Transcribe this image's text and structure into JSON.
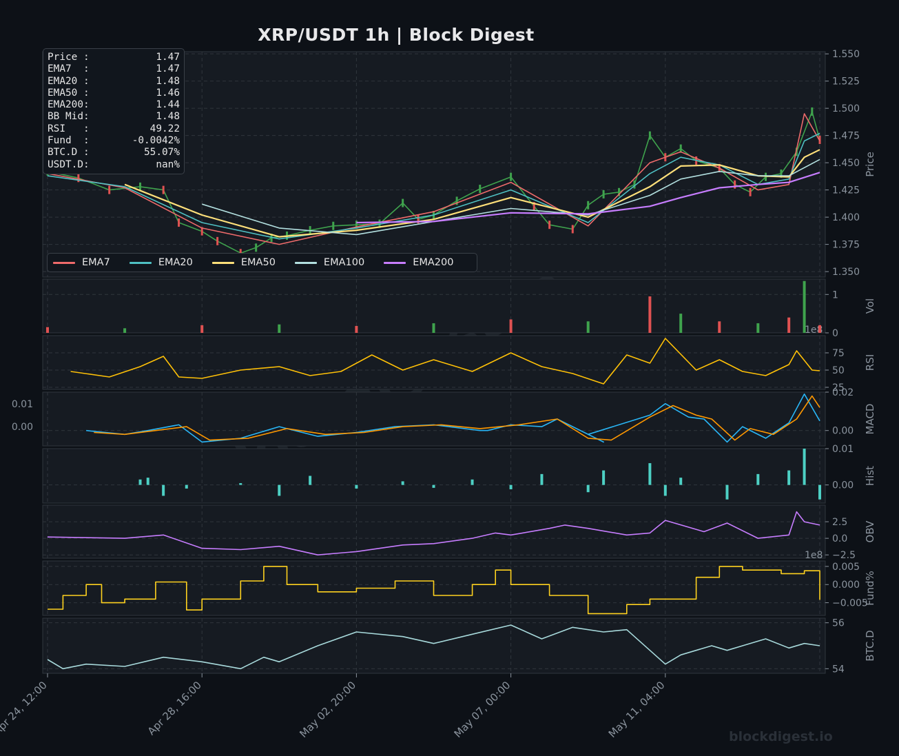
{
  "title": "XRP/USDT  1h  |  Block Digest",
  "watermark": "blockdigest.io",
  "colors": {
    "background": "#0d1117",
    "panel": "#161b22",
    "grid": "#30363d",
    "axis_text": "#8b949e",
    "candle_up": "#3fa34d",
    "candle_down": "#e05252",
    "ema7": "#ef6b6b",
    "ema20": "#4fc1c4",
    "ema50": "#ffe07a",
    "ema100": "#b3e0e0",
    "ema200": "#c77dff",
    "rsi": "#ffc107",
    "macd": "#29b6f6",
    "signal": "#ff9800",
    "hist": "#4dd0c4",
    "obv": "#c77dff",
    "fund": "#ffd21f",
    "btcd": "#a8dadc"
  },
  "info_box": [
    {
      "label": "Price :",
      "value": "1.47"
    },
    {
      "label": "EMA7  :",
      "value": "1.47"
    },
    {
      "label": "EMA20 :",
      "value": "1.48"
    },
    {
      "label": "EMA50 :",
      "value": "1.46"
    },
    {
      "label": "EMA200:",
      "value": "1.44"
    },
    {
      "label": "BB Mid:",
      "value": "1.48"
    },
    {
      "label": "RSI   :",
      "value": "49.22"
    },
    {
      "label": "Fund  :",
      "value": "-0.0042%"
    },
    {
      "label": "BTC.D :",
      "value": "55.07%"
    },
    {
      "label": "USDT.D:",
      "value": "nan%"
    }
  ],
  "legend": [
    {
      "name": "EMA7",
      "color": "#ef6b6b"
    },
    {
      "name": "EMA20",
      "color": "#4fc1c4"
    },
    {
      "name": "EMA50",
      "color": "#ffe07a"
    },
    {
      "name": "EMA100",
      "color": "#b3e0e0"
    },
    {
      "name": "EMA200",
      "color": "#c77dff"
    }
  ],
  "x_ticks": [
    "Apr 24, 12:00",
    "Apr 28, 16:00",
    "May 02, 20:00",
    "May 07, 00:00",
    "May 11, 04:00"
  ],
  "chart_data": {
    "type": "line",
    "x_range": [
      "Apr 24, 12:00",
      "May 15, 08:00"
    ],
    "panels": [
      {
        "name": "price",
        "ylabel": "Price",
        "ylim": [
          1.345,
          1.552
        ],
        "yticks": [
          "1.350",
          "1.375",
          "1.400",
          "1.425",
          "1.450",
          "1.475",
          "1.500",
          "1.525",
          "1.550"
        ],
        "series": [
          {
            "name": "Close",
            "x": [
              0,
              0.04,
              0.08,
              0.12,
              0.15,
              0.17,
              0.2,
              0.22,
              0.25,
              0.27,
              0.29,
              0.31,
              0.34,
              0.37,
              0.4,
              0.43,
              0.46,
              0.48,
              0.5,
              0.53,
              0.56,
              0.6,
              0.63,
              0.65,
              0.68,
              0.7,
              0.72,
              0.74,
              0.76,
              0.78,
              0.8,
              0.82,
              0.84,
              0.87,
              0.89,
              0.91,
              0.93,
              0.95,
              0.97,
              0.99,
              1.0
            ],
            "y": [
              1.442,
              1.436,
              1.425,
              1.428,
              1.425,
              1.395,
              1.387,
              1.378,
              1.367,
              1.372,
              1.381,
              1.383,
              1.388,
              1.392,
              1.393,
              1.394,
              1.413,
              1.398,
              1.402,
              1.415,
              1.426,
              1.437,
              1.41,
              1.393,
              1.389,
              1.411,
              1.421,
              1.423,
              1.43,
              1.475,
              1.455,
              1.463,
              1.452,
              1.445,
              1.43,
              1.423,
              1.437,
              1.44,
              1.46,
              1.497,
              1.471
            ]
          },
          {
            "name": "EMA7",
            "x": [
              0,
              0.1,
              0.2,
              0.3,
              0.4,
              0.5,
              0.6,
              0.7,
              0.78,
              0.82,
              0.87,
              0.92,
              0.96,
              0.98,
              1.0
            ],
            "y": [
              1.44,
              1.427,
              1.39,
              1.375,
              1.391,
              1.405,
              1.432,
              1.392,
              1.45,
              1.46,
              1.445,
              1.425,
              1.43,
              1.495,
              1.47
            ]
          },
          {
            "name": "EMA20",
            "x": [
              0,
              0.1,
              0.2,
              0.3,
              0.4,
              0.5,
              0.6,
              0.7,
              0.78,
              0.82,
              0.87,
              0.92,
              0.96,
              0.98,
              1.0
            ],
            "y": [
              1.438,
              1.428,
              1.395,
              1.38,
              1.39,
              1.402,
              1.425,
              1.395,
              1.44,
              1.455,
              1.448,
              1.43,
              1.435,
              1.47,
              1.477
            ]
          },
          {
            "name": "EMA50",
            "x": [
              0.1,
              0.2,
              0.3,
              0.4,
              0.5,
              0.6,
              0.7,
              0.78,
              0.82,
              0.87,
              0.92,
              0.96,
              0.98,
              1.0
            ],
            "y": [
              1.43,
              1.402,
              1.382,
              1.388,
              1.398,
              1.418,
              1.4,
              1.428,
              1.447,
              1.448,
              1.438,
              1.437,
              1.455,
              1.462
            ]
          },
          {
            "name": "EMA100",
            "x": [
              0.2,
              0.3,
              0.4,
              0.5,
              0.6,
              0.7,
              0.78,
              0.82,
              0.87,
              0.92,
              0.96,
              1.0
            ],
            "y": [
              1.412,
              1.39,
              1.384,
              1.396,
              1.408,
              1.402,
              1.42,
              1.435,
              1.442,
              1.438,
              1.438,
              1.453
            ]
          },
          {
            "name": "EMA200",
            "x": [
              0.4,
              0.5,
              0.6,
              0.7,
              0.78,
              0.82,
              0.87,
              0.92,
              0.96,
              1.0
            ],
            "y": [
              1.395,
              1.396,
              1.404,
              1.403,
              1.41,
              1.418,
              1.427,
              1.43,
              1.432,
              1.441
            ]
          }
        ]
      },
      {
        "name": "volume",
        "ylabel": "Vol",
        "ylim": [
          0,
          1.4
        ],
        "yticks": [
          "0",
          "1"
        ],
        "exponent": "1e8",
        "series": [
          {
            "name": "Volume",
            "x": [
              0,
              0.1,
              0.2,
              0.3,
              0.4,
              0.5,
              0.6,
              0.7,
              0.78,
              0.82,
              0.87,
              0.92,
              0.96,
              0.98,
              1.0
            ],
            "y": [
              0.15,
              0.12,
              0.2,
              0.22,
              0.18,
              0.25,
              0.35,
              0.3,
              0.95,
              0.5,
              0.3,
              0.25,
              0.4,
              1.35,
              0.2
            ]
          }
        ]
      },
      {
        "name": "rsi",
        "ylabel": "RSI",
        "ylim": [
          22,
          100
        ],
        "yticks": [
          "25",
          "50",
          "75"
        ],
        "series": [
          {
            "name": "RSI",
            "x": [
              0.03,
              0.08,
              0.12,
              0.15,
              0.17,
              0.2,
              0.25,
              0.3,
              0.34,
              0.38,
              0.42,
              0.46,
              0.5,
              0.55,
              0.6,
              0.64,
              0.68,
              0.72,
              0.75,
              0.78,
              0.8,
              0.84,
              0.87,
              0.9,
              0.93,
              0.96,
              0.97,
              0.99,
              1.0
            ],
            "y": [
              48,
              40,
              55,
              70,
              40,
              38,
              50,
              55,
              42,
              48,
              72,
              50,
              65,
              48,
              75,
              55,
              45,
              30,
              72,
              60,
              96,
              50,
              65,
              48,
              42,
              58,
              78,
              50,
              49
            ]
          }
        ]
      },
      {
        "name": "macd",
        "ylabel": "MACD",
        "ylim": [
          -0.008,
          0.02
        ],
        "yticks": [
          "0.00",
          "0.02"
        ],
        "left_yticks": [
          "0.00",
          "0.01"
        ],
        "series": [
          {
            "name": "MACD",
            "x": [
              0.05,
              0.1,
              0.13,
              0.17,
              0.2,
              0.25,
              0.3,
              0.35,
              0.4,
              0.45,
              0.5,
              0.56,
              0.57,
              0.6,
              0.64,
              0.66,
              0.72,
              0.7,
              0.78,
              0.8,
              0.83,
              0.85,
              0.88,
              0.9,
              0.93,
              0.96,
              0.98,
              1.0
            ],
            "y": [
              0.0,
              -0.002,
              0.0,
              0.003,
              -0.006,
              -0.004,
              0.002,
              -0.003,
              -0.001,
              0.002,
              0.003,
              0.0,
              0.0,
              0.003,
              0.002,
              0.006,
              -0.006,
              -0.002,
              0.008,
              0.014,
              0.007,
              0.006,
              -0.006,
              0.002,
              -0.004,
              0.004,
              0.019,
              0.005
            ]
          },
          {
            "name": "Signal",
            "x": [
              0.06,
              0.1,
              0.14,
              0.18,
              0.21,
              0.26,
              0.31,
              0.36,
              0.41,
              0.46,
              0.51,
              0.56,
              0.61,
              0.66,
              0.7,
              0.73,
              0.78,
              0.81,
              0.84,
              0.86,
              0.89,
              0.91,
              0.94,
              0.97,
              0.99,
              1.0
            ],
            "y": [
              -0.001,
              -0.002,
              0.0,
              0.002,
              -0.005,
              -0.004,
              0.001,
              -0.002,
              -0.001,
              0.002,
              0.003,
              0.001,
              0.003,
              0.006,
              -0.004,
              -0.005,
              0.007,
              0.013,
              0.008,
              0.006,
              -0.005,
              0.001,
              -0.002,
              0.006,
              0.018,
              0.012
            ]
          }
        ]
      },
      {
        "name": "hist",
        "ylabel": "Hist",
        "ylim": [
          -0.005,
          0.01
        ],
        "yticks": [
          "0.00",
          "0.01"
        ],
        "series": [
          {
            "name": "Histogram",
            "x": [
              0.07,
              0.12,
              0.13,
              0.15,
              0.18,
              0.25,
              0.3,
              0.34,
              0.4,
              0.46,
              0.5,
              0.55,
              0.6,
              0.64,
              0.7,
              0.72,
              0.78,
              0.8,
              0.82,
              0.88,
              0.92,
              0.96,
              0.98,
              1.0
            ],
            "y": [
              0.0,
              0.0015,
              0.002,
              -0.003,
              -0.001,
              0.0005,
              -0.003,
              0.0025,
              -0.001,
              0.001,
              -0.0008,
              0.0015,
              -0.0012,
              0.003,
              -0.002,
              0.004,
              0.006,
              -0.003,
              0.002,
              -0.004,
              0.003,
              0.004,
              0.01,
              -0.004
            ]
          }
        ]
      },
      {
        "name": "obv",
        "ylabel": "OBV",
        "ylim": [
          -3,
          5
        ],
        "yticks": [
          "−2.5",
          "0.0",
          "2.5"
        ],
        "exponent": "1e8",
        "series": [
          {
            "name": "OBV",
            "x": [
              0,
              0.1,
              0.15,
              0.2,
              0.25,
              0.3,
              0.35,
              0.4,
              0.46,
              0.5,
              0.55,
              0.58,
              0.6,
              0.65,
              0.67,
              0.7,
              0.75,
              0.78,
              0.8,
              0.85,
              0.88,
              0.92,
              0.96,
              0.97,
              0.98,
              1.0
            ],
            "y": [
              0.2,
              0.0,
              0.5,
              -1.5,
              -1.7,
              -1.2,
              -2.5,
              -2.0,
              -1.0,
              -0.8,
              0.0,
              0.8,
              0.5,
              1.5,
              2.0,
              1.5,
              0.5,
              0.8,
              2.7,
              1.0,
              2.3,
              0.0,
              0.5,
              4.0,
              2.5,
              2.0
            ]
          }
        ]
      },
      {
        "name": "fund",
        "ylabel": "Fund%",
        "ylim": [
          -0.0085,
          0.0065
        ],
        "yticks": [
          "−0.005",
          "0.000",
          "0.005"
        ],
        "series": [
          {
            "name": "Funding",
            "x": [
              0,
              0.02,
              0.05,
              0.07,
              0.1,
              0.14,
              0.18,
              0.2,
              0.25,
              0.28,
              0.31,
              0.35,
              0.4,
              0.45,
              0.5,
              0.55,
              0.58,
              0.6,
              0.65,
              0.7,
              0.75,
              0.78,
              0.84,
              0.87,
              0.9,
              0.95,
              0.98,
              1.0
            ],
            "y": [
              -0.0068,
              -0.003,
              0.0,
              -0.005,
              -0.004,
              0.0007,
              -0.007,
              -0.004,
              0.001,
              0.005,
              0.0,
              -0.002,
              -0.001,
              0.001,
              -0.003,
              0.0,
              0.004,
              0.0,
              -0.003,
              -0.008,
              -0.0055,
              -0.004,
              0.002,
              0.005,
              0.004,
              0.003,
              0.0038,
              -0.0042
            ]
          }
        ]
      },
      {
        "name": "btcd",
        "ylabel": "BTC.D",
        "ylim": [
          53.8,
          56.2
        ],
        "yticks": [
          "54",
          "56"
        ],
        "series": [
          {
            "name": "BTC.D",
            "x": [
              0,
              0.02,
              0.05,
              0.1,
              0.15,
              0.2,
              0.25,
              0.28,
              0.3,
              0.35,
              0.4,
              0.46,
              0.5,
              0.55,
              0.6,
              0.64,
              0.68,
              0.72,
              0.75,
              0.78,
              0.8,
              0.82,
              0.86,
              0.88,
              0.9,
              0.93,
              0.96,
              0.98,
              1.0
            ],
            "y": [
              54.4,
              54.0,
              54.2,
              54.1,
              54.5,
              54.3,
              54.0,
              54.5,
              54.3,
              55.0,
              55.6,
              55.4,
              55.1,
              55.5,
              55.9,
              55.3,
              55.8,
              55.6,
              55.7,
              54.8,
              54.2,
              54.6,
              55.0,
              54.8,
              55.0,
              55.3,
              54.9,
              55.1,
              55.0
            ]
          }
        ]
      }
    ]
  }
}
